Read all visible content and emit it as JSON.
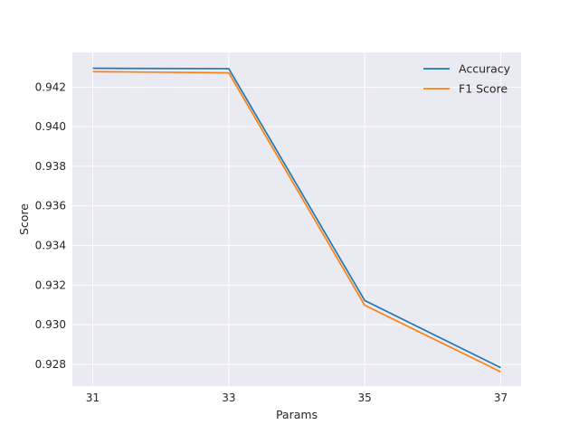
{
  "chart_data": {
    "type": "line",
    "title": "",
    "xlabel": "Params",
    "ylabel": "Score",
    "x": [
      31,
      33,
      35,
      37
    ],
    "xticks": [
      "31",
      "33",
      "35",
      "37"
    ],
    "xlim": [
      30.7,
      37.3
    ],
    "ylim": [
      0.9269,
      0.94375
    ],
    "yticks": [
      "0.928",
      "0.930",
      "0.932",
      "0.934",
      "0.936",
      "0.938",
      "0.940",
      "0.942"
    ],
    "grid": true,
    "legend_position": "top-right",
    "series": [
      {
        "name": "Accuracy",
        "color": "#1f77b4",
        "values": [
          0.94295,
          0.94293,
          0.93122,
          0.92783
        ]
      },
      {
        "name": "F1 Score",
        "color": "#ff7f0e",
        "values": [
          0.94278,
          0.94272,
          0.93098,
          0.92762
        ]
      }
    ]
  },
  "colors": {
    "plot_background": "#eaeaf2",
    "grid": "#ffffff",
    "text": "#262626"
  }
}
